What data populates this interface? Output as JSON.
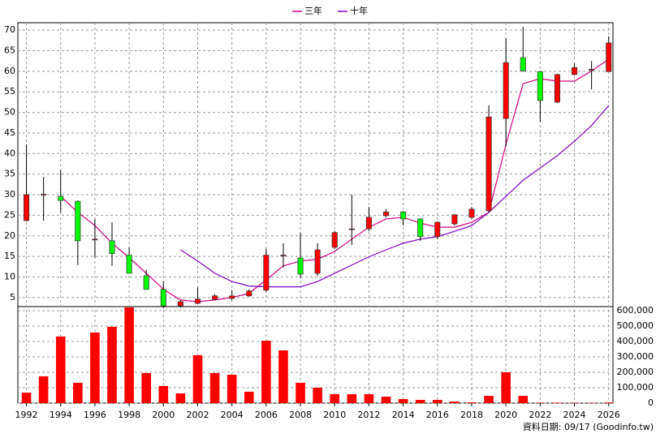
{
  "chart_data": {
    "type": "candlestick",
    "x": [
      1992,
      1993,
      1994,
      1995,
      1996,
      1997,
      1998,
      1999,
      2000,
      2001,
      2002,
      2003,
      2004,
      2005,
      2006,
      2007,
      2008,
      2009,
      2010,
      2011,
      2012,
      2013,
      2014,
      2015,
      2016,
      2017,
      2018,
      2019,
      2020,
      2021,
      2022,
      2023,
      2024,
      2025,
      2026
    ],
    "open": [
      23.7,
      30,
      29.6,
      28.4,
      19.2,
      18.8,
      15.3,
      10.3,
      7.0,
      3.0,
      3.6,
      4.6,
      4.8,
      5.4,
      6.8,
      15.3,
      14.6,
      10.9,
      17.2,
      21.7,
      21.7,
      24.9,
      25.8,
      24.1,
      19.8,
      22.9,
      24.5,
      26.1,
      48.5,
      63.3,
      59.9,
      52.5,
      59.2,
      60.5,
      59.9
    ],
    "high": [
      42.2,
      34.3,
      35.9,
      28.6,
      24.1,
      23.3,
      17.2,
      11.7,
      8.9,
      4.4,
      7.4,
      5.8,
      6.8,
      7.0,
      16.8,
      18.2,
      20.8,
      18.2,
      21.2,
      30,
      27,
      26.5,
      26,
      24.2,
      23.5,
      25.3,
      27,
      51.7,
      68,
      70.8,
      60,
      59.4,
      61.9,
      62.5,
      68.5
    ],
    "low": [
      23.5,
      23.7,
      25.7,
      12.9,
      14.7,
      12.7,
      10.9,
      7.0,
      2.4,
      2.6,
      3.4,
      4.4,
      4.4,
      5.2,
      6.4,
      12.3,
      9.7,
      10.3,
      16.8,
      17.8,
      21.1,
      24.5,
      22.5,
      18.8,
      19.2,
      22.5,
      24.1,
      25.7,
      41.8,
      59.9,
      47.7,
      52.3,
      59.0,
      55.6,
      59.9
    ],
    "close": [
      30,
      30.1,
      28.6,
      18.8,
      19.2,
      15.7,
      10.9,
      7.0,
      3.0,
      4.0,
      4.6,
      5.4,
      5.4,
      6.6,
      15.3,
      15.3,
      10.7,
      16.6,
      20.8,
      21.7,
      24.5,
      25.8,
      24.1,
      19.8,
      23.3,
      25.1,
      26.5,
      48.9,
      62.1,
      60.1,
      52.9,
      59.2,
      60.9,
      60.5,
      66.9
    ],
    "up_color": "#ff0000",
    "down_color": "#00ff00",
    "series": [
      {
        "name": "三年",
        "color": "#d4007f",
        "values": [
          null,
          null,
          29.6,
          25.7,
          22.5,
          18.2,
          14.7,
          10.9,
          7.0,
          4.4,
          4.0,
          4.4,
          5.0,
          6.0,
          9.3,
          12.7,
          13.9,
          14.3,
          16.2,
          19.2,
          22.1,
          24.1,
          24.5,
          23.1,
          22.1,
          22.1,
          23.3,
          25.7,
          42.2,
          57,
          58.2,
          57.6,
          57.6,
          60.1,
          62.9
        ]
      },
      {
        "name": "十年",
        "color": "#8000c0",
        "values": [
          null,
          null,
          null,
          null,
          null,
          null,
          null,
          null,
          null,
          16.6,
          13.9,
          10.9,
          8.9,
          7.8,
          7.6,
          7.6,
          7.6,
          8.9,
          10.9,
          12.9,
          14.9,
          16.6,
          18.2,
          19.2,
          19.8,
          21.1,
          22.5,
          25.7,
          29.6,
          33.5,
          36.5,
          39.5,
          43,
          46.8,
          51.7
        ]
      }
    ],
    "volume": [
      68000,
      174000,
      432000,
      132000,
      458000,
      495000,
      621000,
      195000,
      111000,
      63000,
      311000,
      195000,
      184000,
      74000,
      405000,
      342000,
      132000,
      100000,
      58000,
      58000,
      58000,
      42000,
      26000,
      21000,
      21000,
      10000,
      5000,
      47000,
      200000,
      47000,
      3000,
      3000,
      2000,
      2000,
      4000
    ],
    "volume_color": "#ff0000",
    "xlim": [
      1991.5,
      2026.25
    ],
    "xticks": [
      1992,
      1994,
      1996,
      1998,
      2000,
      2002,
      2004,
      2006,
      2008,
      2010,
      2012,
      2014,
      2016,
      2018,
      2020,
      2022,
      2024,
      2026
    ],
    "ylim": [
      2.8,
      71.8
    ],
    "yticks": [
      5,
      10,
      15,
      20,
      25,
      30,
      35,
      40,
      45,
      50,
      55,
      60,
      65,
      70
    ],
    "y2lim": [
      0,
      626000
    ],
    "y2ticks": [
      {
        "value": 0,
        "label": "0"
      },
      {
        "value": 100000,
        "label": "100,000"
      },
      {
        "value": 200000,
        "label": "200,000"
      },
      {
        "value": 300000,
        "label": "300,000"
      },
      {
        "value": 400000,
        "label": "400,000"
      },
      {
        "value": 500000,
        "label": "500,000"
      },
      {
        "value": 600000,
        "label": "600,000"
      }
    ],
    "grid": true,
    "source": "資料日期: 09/17 (Goodinfo.tw)"
  }
}
